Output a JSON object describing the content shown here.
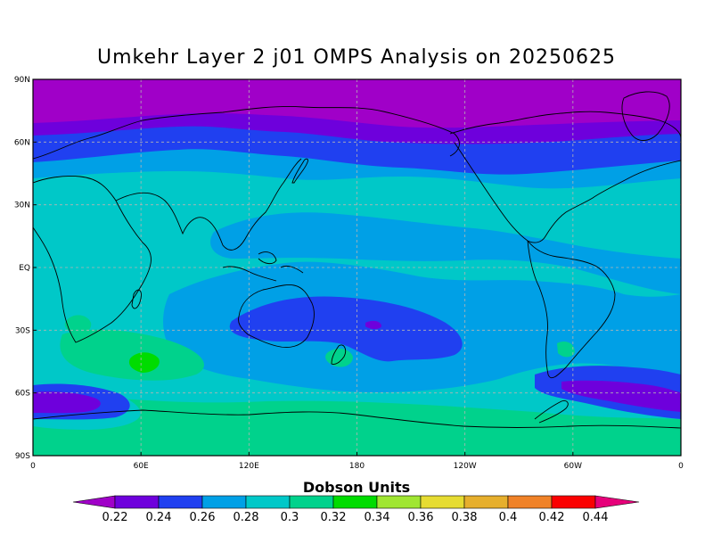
{
  "title": "Umkehr Layer 2 j01 OMPS Analysis on 20250625",
  "axes": {
    "lat_ticks": [
      "90N",
      "60N",
      "30N",
      "EQ",
      "30S",
      "60S",
      "90S"
    ],
    "lon_ticks": [
      "0",
      "60E",
      "120E",
      "180",
      "120W",
      "60W",
      "0"
    ]
  },
  "colorbar": {
    "title": "Dobson Units",
    "labels": [
      "0.22",
      "0.24",
      "0.26",
      "0.28",
      "0.3",
      "0.32",
      "0.34",
      "0.36",
      "0.38",
      "0.4",
      "0.42",
      "0.44"
    ],
    "colors": [
      "#a000c8",
      "#6e00dc",
      "#2040f0",
      "#00a0e6",
      "#00c8c8",
      "#00d28c",
      "#00dc00",
      "#a0e632",
      "#e6dc32",
      "#e6af2d",
      "#f08228",
      "#fa0000",
      "#e6007a"
    ]
  },
  "field_colors": {
    "purple": "#a000c8",
    "violet": "#6e00dc",
    "blue": "#2040f0",
    "sky": "#00a0e6",
    "cyan": "#00c8c8",
    "seagreen": "#00d28c",
    "green": "#00dc00"
  }
}
